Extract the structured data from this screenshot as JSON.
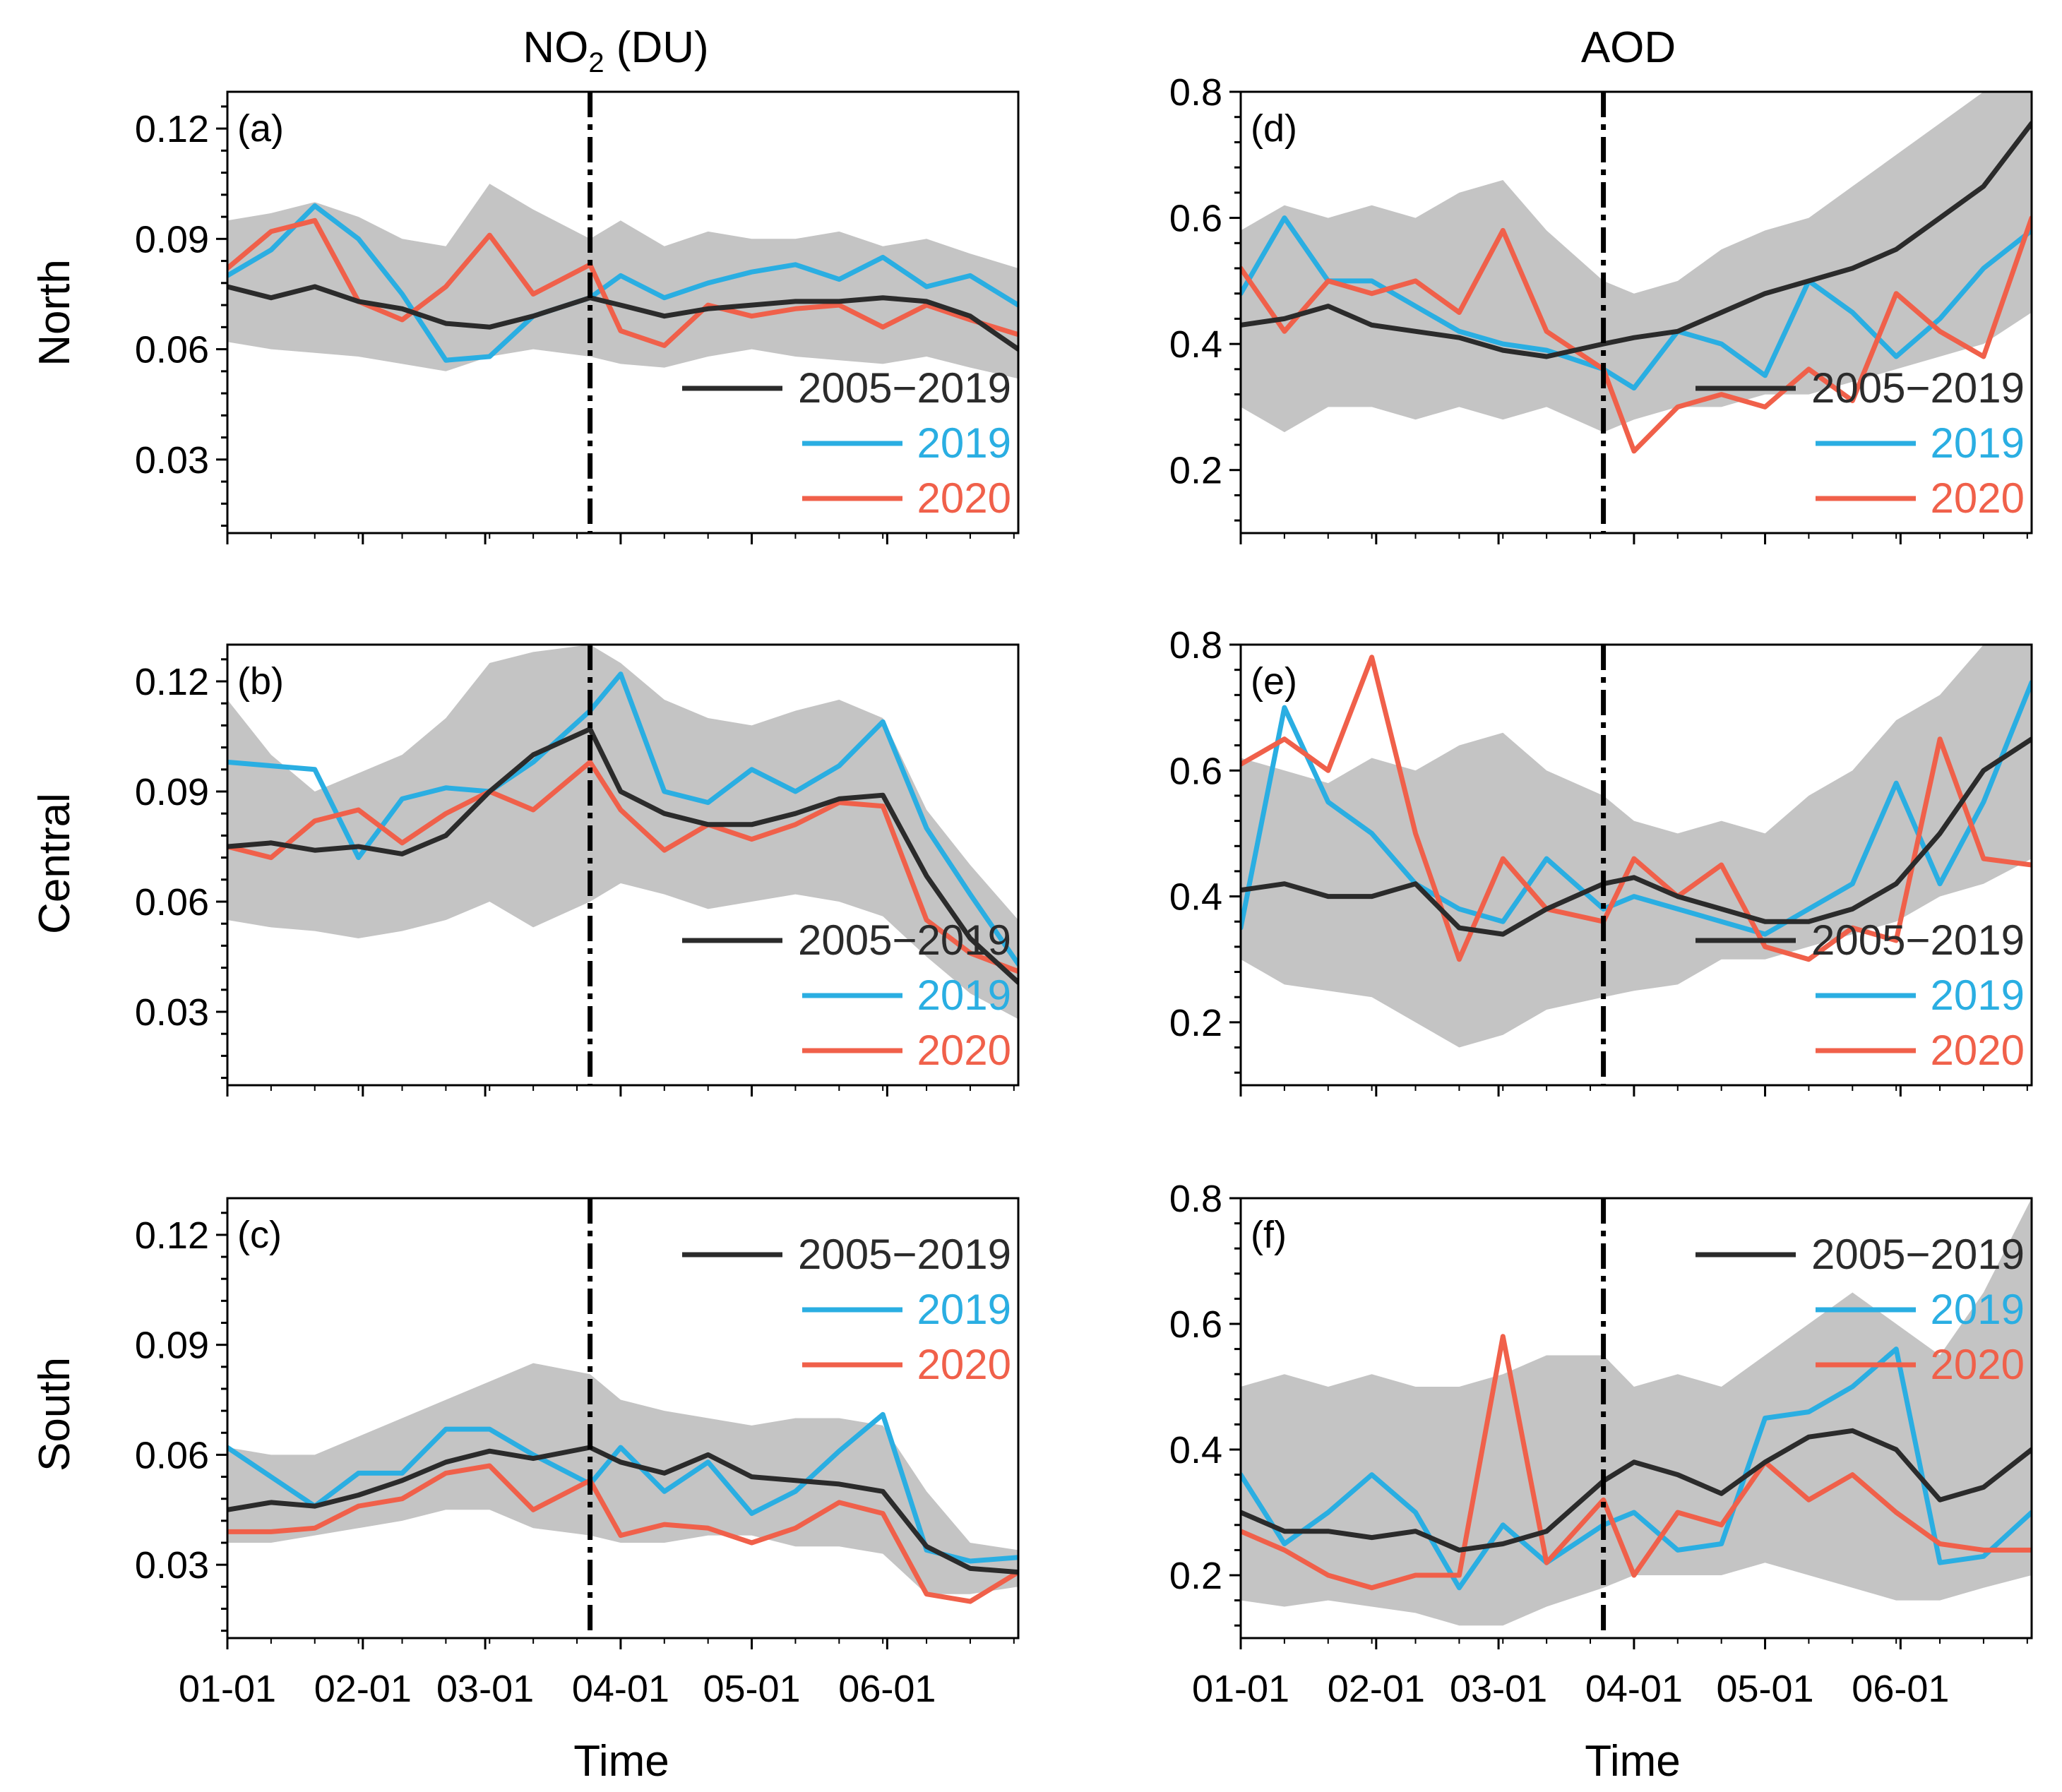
{
  "figure": {
    "col_titles": [
      {
        "base": "NO",
        "sub": "2",
        "rest": " (DU)"
      },
      {
        "base": "AOD",
        "sub": "",
        "rest": ""
      }
    ],
    "row_labels": [
      "North",
      "Central",
      "South"
    ],
    "x_title": "Time",
    "x_tick_labels": [
      "01-01",
      "02-01",
      "03-01",
      "04-01",
      "05-01",
      "06-01"
    ],
    "event_day": 83,
    "colors": {
      "clim": "#2b2b2b",
      "y2019": "#2aaee2",
      "y2020": "#f0604a",
      "band": "#c4c4c4"
    }
  },
  "chart_data": [
    {
      "panel": "(a)",
      "type": "line",
      "variable": "NO2 (DU)",
      "region": "North",
      "ylim": [
        0.01,
        0.13
      ],
      "yticks": [
        0.03,
        0.06,
        0.09,
        0.12
      ],
      "ytick_labels": [
        "0.03",
        "0.06",
        "0.09",
        "0.12"
      ],
      "xlim": [
        0,
        181
      ],
      "x_ticks": [
        0,
        31,
        59,
        90,
        120,
        151
      ],
      "legend_position": "lower-right",
      "x": [
        0,
        10,
        20,
        30,
        40,
        50,
        60,
        70,
        83,
        90,
        100,
        110,
        120,
        130,
        140,
        150,
        160,
        170,
        181
      ],
      "band": {
        "name": "2005-2019 range",
        "upper": [
          0.095,
          0.097,
          0.1,
          0.096,
          0.09,
          0.088,
          0.105,
          0.098,
          0.09,
          0.095,
          0.088,
          0.092,
          0.09,
          0.09,
          0.092,
          0.088,
          0.09,
          0.086,
          0.082
        ],
        "lower": [
          0.062,
          0.06,
          0.059,
          0.058,
          0.056,
          0.054,
          0.058,
          0.06,
          0.058,
          0.056,
          0.055,
          0.058,
          0.06,
          0.058,
          0.057,
          0.056,
          0.058,
          0.055,
          0.052
        ]
      },
      "series": [
        {
          "name": "2005−2019",
          "values": [
            0.077,
            0.074,
            0.077,
            0.073,
            0.071,
            0.067,
            0.066,
            0.069,
            0.074,
            0.072,
            0.069,
            0.071,
            0.072,
            0.073,
            0.073,
            0.074,
            0.073,
            0.069,
            0.06
          ]
        },
        {
          "name": "2019",
          "values": [
            0.08,
            0.087,
            0.099,
            0.09,
            0.075,
            0.057,
            0.058,
            0.069,
            0.074,
            0.08,
            0.074,
            0.078,
            0.081,
            0.083,
            0.079,
            0.085,
            0.077,
            0.08,
            0.072
          ]
        },
        {
          "name": "2020",
          "values": [
            0.082,
            0.092,
            0.095,
            0.073,
            0.068,
            0.077,
            0.091,
            0.075,
            0.083,
            0.065,
            0.061,
            0.072,
            0.069,
            0.071,
            0.072,
            0.066,
            0.072,
            0.068,
            0.064
          ]
        }
      ]
    },
    {
      "panel": "(b)",
      "type": "line",
      "variable": "NO2 (DU)",
      "region": "Central",
      "ylim": [
        0.01,
        0.13
      ],
      "yticks": [
        0.03,
        0.06,
        0.09,
        0.12
      ],
      "ytick_labels": [
        "0.03",
        "0.06",
        "0.09",
        "0.12"
      ],
      "xlim": [
        0,
        181
      ],
      "x_ticks": [
        0,
        31,
        59,
        90,
        120,
        151
      ],
      "legend_position": "lower-right",
      "x": [
        0,
        10,
        20,
        30,
        40,
        50,
        60,
        70,
        83,
        90,
        100,
        110,
        120,
        130,
        140,
        150,
        160,
        170,
        181
      ],
      "band": {
        "name": "2005-2019 range",
        "upper": [
          0.115,
          0.1,
          0.09,
          0.095,
          0.1,
          0.11,
          0.125,
          0.128,
          0.13,
          0.125,
          0.115,
          0.11,
          0.108,
          0.112,
          0.115,
          0.11,
          0.085,
          0.07,
          0.055
        ],
        "lower": [
          0.055,
          0.053,
          0.052,
          0.05,
          0.052,
          0.055,
          0.06,
          0.053,
          0.06,
          0.065,
          0.062,
          0.058,
          0.06,
          0.062,
          0.06,
          0.056,
          0.045,
          0.035,
          0.028
        ]
      },
      "series": [
        {
          "name": "2005−2019",
          "values": [
            0.075,
            0.076,
            0.074,
            0.075,
            0.073,
            0.078,
            0.09,
            0.1,
            0.107,
            0.09,
            0.084,
            0.081,
            0.081,
            0.084,
            0.088,
            0.089,
            0.067,
            0.05,
            0.038
          ]
        },
        {
          "name": "2019",
          "values": [
            0.098,
            0.097,
            0.096,
            0.072,
            0.088,
            0.091,
            0.09,
            0.098,
            0.112,
            0.122,
            0.09,
            0.087,
            0.096,
            0.09,
            0.097,
            0.109,
            0.08,
            0.062,
            0.043
          ]
        },
        {
          "name": "2020",
          "values": [
            0.075,
            0.072,
            0.082,
            0.085,
            0.076,
            0.084,
            0.09,
            0.085,
            0.098,
            0.085,
            0.074,
            0.081,
            0.077,
            0.081,
            0.087,
            0.086,
            0.055,
            0.046,
            0.041
          ]
        }
      ]
    },
    {
      "panel": "(c)",
      "type": "line",
      "variable": "NO2 (DU)",
      "region": "South",
      "ylim": [
        0.01,
        0.13
      ],
      "yticks": [
        0.03,
        0.06,
        0.09,
        0.12
      ],
      "ytick_labels": [
        "0.03",
        "0.06",
        "0.09",
        "0.12"
      ],
      "xlim": [
        0,
        181
      ],
      "x_ticks": [
        0,
        31,
        59,
        90,
        120,
        151
      ],
      "legend_position": "upper-right",
      "x": [
        0,
        10,
        20,
        30,
        40,
        50,
        60,
        70,
        83,
        90,
        100,
        110,
        120,
        130,
        140,
        150,
        160,
        170,
        181
      ],
      "band": {
        "name": "2005-2019 range",
        "upper": [
          0.062,
          0.06,
          0.06,
          0.065,
          0.07,
          0.075,
          0.08,
          0.085,
          0.082,
          0.075,
          0.072,
          0.07,
          0.068,
          0.07,
          0.07,
          0.068,
          0.05,
          0.036,
          0.034
        ]
      },
      "band_lower": [
        0.036,
        0.036,
        0.038,
        0.04,
        0.042,
        0.045,
        0.045,
        0.04,
        0.038,
        0.036,
        0.036,
        0.038,
        0.038,
        0.035,
        0.035,
        0.033,
        0.022,
        0.022,
        0.024
      ],
      "series": [
        {
          "name": "2005−2019",
          "values": [
            0.045,
            0.047,
            0.046,
            0.049,
            0.053,
            0.058,
            0.061,
            0.059,
            0.062,
            0.058,
            0.055,
            0.06,
            0.054,
            0.053,
            0.052,
            0.05,
            0.035,
            0.029,
            0.028
          ]
        },
        {
          "name": "2019",
          "values": [
            0.062,
            0.054,
            0.046,
            0.055,
            0.055,
            0.067,
            0.067,
            0.06,
            0.052,
            0.062,
            0.05,
            0.058,
            0.044,
            0.05,
            0.061,
            0.071,
            0.034,
            0.031,
            0.032
          ]
        },
        {
          "name": "2020",
          "values": [
            0.039,
            0.039,
            0.04,
            0.046,
            0.048,
            0.055,
            0.057,
            0.045,
            0.053,
            0.038,
            0.041,
            0.04,
            0.036,
            0.04,
            0.047,
            0.044,
            0.022,
            0.02,
            0.028
          ]
        }
      ]
    },
    {
      "panel": "(d)",
      "type": "line",
      "variable": "AOD",
      "region": "North",
      "ylim": [
        0.1,
        0.8
      ],
      "yticks": [
        0.2,
        0.4,
        0.6,
        0.8
      ],
      "ytick_labels": [
        "0.2",
        "0.4",
        "0.6",
        "0.8"
      ],
      "xlim": [
        0,
        181
      ],
      "x_ticks": [
        0,
        31,
        59,
        90,
        120,
        151
      ],
      "legend_position": "lower-right",
      "x": [
        0,
        10,
        20,
        30,
        40,
        50,
        60,
        70,
        83,
        90,
        100,
        110,
        120,
        130,
        140,
        150,
        160,
        170,
        181
      ],
      "band": {
        "name": "2005-2019 range",
        "upper": [
          0.58,
          0.62,
          0.6,
          0.62,
          0.6,
          0.64,
          0.66,
          0.58,
          0.5,
          0.48,
          0.5,
          0.55,
          0.58,
          0.6,
          0.65,
          0.7,
          0.75,
          0.8,
          0.8
        ],
        "lower": [
          0.3,
          0.26,
          0.3,
          0.3,
          0.28,
          0.3,
          0.28,
          0.3,
          0.26,
          0.28,
          0.3,
          0.3,
          0.32,
          0.32,
          0.34,
          0.36,
          0.38,
          0.4,
          0.45
        ]
      },
      "series": [
        {
          "name": "2005−2019",
          "values": [
            0.43,
            0.44,
            0.46,
            0.43,
            0.42,
            0.41,
            0.39,
            0.38,
            0.4,
            0.41,
            0.42,
            0.45,
            0.48,
            0.5,
            0.52,
            0.55,
            0.6,
            0.65,
            0.75
          ]
        },
        {
          "name": "2019",
          "values": [
            0.48,
            0.6,
            0.5,
            0.5,
            0.46,
            0.42,
            0.4,
            0.39,
            0.36,
            0.33,
            0.42,
            0.4,
            0.35,
            0.5,
            0.45,
            0.38,
            0.44,
            0.52,
            0.58
          ]
        },
        {
          "name": "2020",
          "values": [
            0.52,
            0.42,
            0.5,
            0.48,
            0.5,
            0.45,
            0.58,
            0.42,
            0.36,
            0.23,
            0.3,
            0.32,
            0.3,
            0.36,
            0.31,
            0.48,
            0.42,
            0.38,
            0.6
          ]
        }
      ]
    },
    {
      "panel": "(e)",
      "type": "line",
      "variable": "AOD",
      "region": "Central",
      "ylim": [
        0.1,
        0.8
      ],
      "yticks": [
        0.2,
        0.4,
        0.6,
        0.8
      ],
      "ytick_labels": [
        "0.2",
        "0.4",
        "0.6",
        "0.8"
      ],
      "xlim": [
        0,
        181
      ],
      "x_ticks": [
        0,
        31,
        59,
        90,
        120,
        151
      ],
      "legend_position": "lower-right",
      "x": [
        0,
        10,
        20,
        30,
        40,
        50,
        60,
        70,
        83,
        90,
        100,
        110,
        120,
        130,
        140,
        150,
        160,
        170,
        181
      ],
      "band": {
        "name": "2005-2019 range",
        "upper": [
          0.62,
          0.6,
          0.58,
          0.62,
          0.6,
          0.64,
          0.66,
          0.6,
          0.56,
          0.52,
          0.5,
          0.52,
          0.5,
          0.56,
          0.6,
          0.68,
          0.72,
          0.8,
          0.8
        ],
        "lower": [
          0.3,
          0.26,
          0.25,
          0.24,
          0.2,
          0.16,
          0.18,
          0.22,
          0.24,
          0.25,
          0.26,
          0.3,
          0.3,
          0.32,
          0.34,
          0.36,
          0.4,
          0.42,
          0.46
        ]
      },
      "series": [
        {
          "name": "2005−2019",
          "values": [
            0.41,
            0.42,
            0.4,
            0.4,
            0.42,
            0.35,
            0.34,
            0.38,
            0.42,
            0.43,
            0.4,
            0.38,
            0.36,
            0.36,
            0.38,
            0.42,
            0.5,
            0.6,
            0.65
          ]
        },
        {
          "name": "2019",
          "values": [
            0.35,
            0.7,
            0.55,
            0.5,
            0.42,
            0.38,
            0.36,
            0.46,
            0.38,
            0.4,
            0.38,
            0.36,
            0.34,
            0.38,
            0.42,
            0.58,
            0.42,
            0.55,
            0.74
          ]
        },
        {
          "name": "2020",
          "values": [
            0.61,
            0.65,
            0.6,
            0.78,
            0.5,
            0.3,
            0.46,
            0.38,
            0.36,
            0.46,
            0.4,
            0.45,
            0.32,
            0.3,
            0.35,
            0.33,
            0.65,
            0.46,
            0.45
          ]
        }
      ]
    },
    {
      "panel": "(f)",
      "type": "line",
      "variable": "AOD",
      "region": "South",
      "ylim": [
        0.1,
        0.8
      ],
      "yticks": [
        0.2,
        0.4,
        0.6,
        0.8
      ],
      "ytick_labels": [
        "0.2",
        "0.4",
        "0.6",
        "0.8"
      ],
      "xlim": [
        0,
        181
      ],
      "x_ticks": [
        0,
        31,
        59,
        90,
        120,
        151
      ],
      "legend_position": "upper-right",
      "x": [
        0,
        10,
        20,
        30,
        40,
        50,
        60,
        70,
        83,
        90,
        100,
        110,
        120,
        130,
        140,
        150,
        160,
        170,
        181
      ],
      "band": {
        "name": "2005-2019 range",
        "upper": [
          0.5,
          0.52,
          0.5,
          0.52,
          0.5,
          0.5,
          0.52,
          0.55,
          0.55,
          0.5,
          0.52,
          0.5,
          0.55,
          0.6,
          0.65,
          0.6,
          0.55,
          0.65,
          0.8
        ]
      },
      "band_lower": [
        0.16,
        0.15,
        0.16,
        0.15,
        0.14,
        0.12,
        0.12,
        0.15,
        0.18,
        0.2,
        0.2,
        0.2,
        0.22,
        0.2,
        0.18,
        0.16,
        0.16,
        0.18,
        0.2
      ],
      "series": [
        {
          "name": "2005−2019",
          "values": [
            0.3,
            0.27,
            0.27,
            0.26,
            0.27,
            0.24,
            0.25,
            0.27,
            0.35,
            0.38,
            0.36,
            0.33,
            0.38,
            0.42,
            0.43,
            0.4,
            0.32,
            0.34,
            0.4
          ]
        },
        {
          "name": "2019",
          "values": [
            0.36,
            0.25,
            0.3,
            0.36,
            0.3,
            0.18,
            0.28,
            0.22,
            0.28,
            0.3,
            0.24,
            0.25,
            0.45,
            0.46,
            0.5,
            0.56,
            0.22,
            0.23,
            0.3
          ]
        },
        {
          "name": "2020",
          "values": [
            0.27,
            0.24,
            0.2,
            0.18,
            0.2,
            0.2,
            0.58,
            0.22,
            0.32,
            0.2,
            0.3,
            0.28,
            0.38,
            0.32,
            0.36,
            0.3,
            0.25,
            0.24,
            0.24
          ]
        }
      ]
    }
  ],
  "legend": [
    {
      "label": "2005−2019",
      "color": "#2b2b2b"
    },
    {
      "label": "2019",
      "color": "#2aaee2"
    },
    {
      "label": "2020",
      "color": "#f0604a"
    }
  ]
}
